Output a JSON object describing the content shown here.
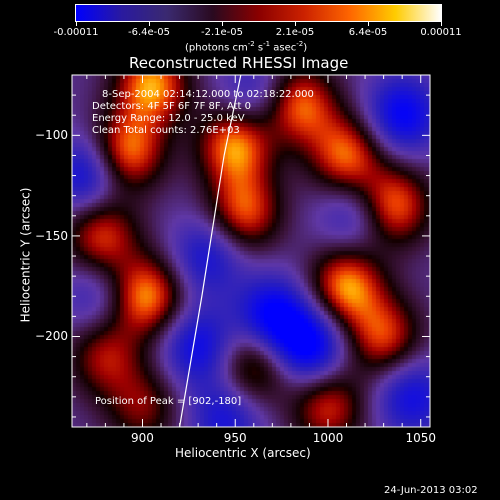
{
  "colorbar": {
    "tick_labels": [
      "-0.00011",
      "-6.4e-05",
      "-2.1e-05",
      "2.1e-05",
      "6.4e-05",
      "0.00011"
    ],
    "units_prefix": "(photons cm",
    "units_e1": "-2",
    "units_mid": " s",
    "units_e2": "-1",
    "units_mid2": " asec",
    "units_e3": "-2",
    "units_suffix": ")",
    "colors": [
      "#0000ff",
      "#2a1aa0",
      "#3b2a70",
      "#2a0a20",
      "#8b0000",
      "#cc2200",
      "#ff6600",
      "#ffcc00",
      "#ffffff"
    ]
  },
  "info": {
    "line1": "8-Sep-2004 02:14:12.000 to 02:18:22.000",
    "line2": "Detectors: 4F 5F 6F 7F 8F, Att 0",
    "line3": "Energy Range: 12.0 - 25.0 keV",
    "line4": "Clean     Total counts: 2.76E+03"
  },
  "peak_label": "Position of Peak = [902,-180]",
  "footer_date": "24-Jun-2013 03:02",
  "chart_data": {
    "type": "heatmap",
    "title": "Reconstructed RHESSI Image",
    "xlabel": "Heliocentric X (arcsec)",
    "ylabel": "Heliocentric Y (arcsec)",
    "xlim": [
      862,
      1055
    ],
    "ylim": [
      -245,
      -70
    ],
    "x_ticks": [
      900,
      950,
      1000,
      1050
    ],
    "y_ticks": [
      -100,
      -150,
      -200
    ],
    "limb_curve": [
      [
        920,
        -245
      ],
      [
        932,
        -180
      ],
      [
        944,
        -110
      ],
      [
        953,
        -70
      ]
    ],
    "blobs": [
      {
        "x": 905,
        "y": -75,
        "v": 1.0
      },
      {
        "x": 892,
        "y": -108,
        "v": 0.95
      },
      {
        "x": 950,
        "y": -105,
        "v": 1.0
      },
      {
        "x": 955,
        "y": -138,
        "v": 0.85
      },
      {
        "x": 902,
        "y": -180,
        "v": 1.0
      },
      {
        "x": 878,
        "y": -150,
        "v": 0.8
      },
      {
        "x": 985,
        "y": -85,
        "v": 0.9
      },
      {
        "x": 1010,
        "y": -110,
        "v": 0.9
      },
      {
        "x": 1035,
        "y": -135,
        "v": 0.95
      },
      {
        "x": 1010,
        "y": -175,
        "v": 1.0
      },
      {
        "x": 1030,
        "y": -200,
        "v": 0.8
      },
      {
        "x": 960,
        "y": -215,
        "v": 0.7
      },
      {
        "x": 880,
        "y": -210,
        "v": 0.65
      },
      {
        "x": 1000,
        "y": -235,
        "v": 0.75
      },
      {
        "x": 900,
        "y": -235,
        "v": 0.55
      },
      {
        "x": 1040,
        "y": -90,
        "v": -0.8
      },
      {
        "x": 870,
        "y": -120,
        "v": -0.7
      },
      {
        "x": 935,
        "y": -160,
        "v": -0.6
      },
      {
        "x": 970,
        "y": -190,
        "v": -0.85
      },
      {
        "x": 990,
        "y": -205,
        "v": -0.9
      },
      {
        "x": 930,
        "y": -205,
        "v": -0.7
      },
      {
        "x": 1045,
        "y": -230,
        "v": -0.65
      },
      {
        "x": 945,
        "y": -240,
        "v": -0.6
      },
      {
        "x": 1015,
        "y": -140,
        "v": -0.5
      },
      {
        "x": 960,
        "y": -80,
        "v": -0.45
      },
      {
        "x": 875,
        "y": -180,
        "v": -0.4
      }
    ]
  }
}
